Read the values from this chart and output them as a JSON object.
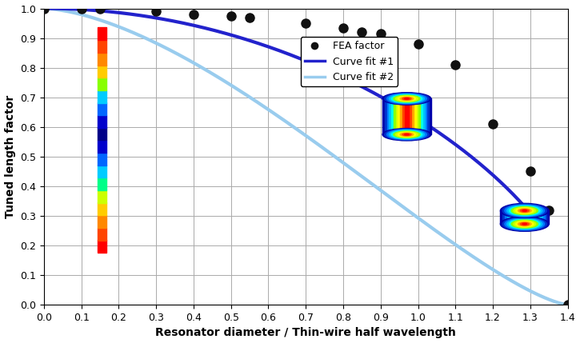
{
  "xlabel": "Resonator diameter / Thin-wire half wavelength",
  "ylabel": "Tuned length factor",
  "xlim": [
    0.0,
    1.4
  ],
  "ylim": [
    0.0,
    1.0
  ],
  "xticks": [
    0.0,
    0.1,
    0.2,
    0.3,
    0.4,
    0.5,
    0.6,
    0.7,
    0.8,
    0.9,
    1.0,
    1.1,
    1.2,
    1.3,
    1.4
  ],
  "yticks": [
    0.0,
    0.1,
    0.2,
    0.3,
    0.4,
    0.5,
    0.6,
    0.7,
    0.8,
    0.9,
    1.0
  ],
  "fea_x": [
    0.0,
    0.1,
    0.15,
    0.3,
    0.4,
    0.5,
    0.55,
    0.7,
    0.8,
    0.85,
    0.9,
    1.0,
    1.1,
    1.2,
    1.3,
    1.35,
    1.4
  ],
  "fea_y": [
    1.0,
    1.0,
    1.0,
    0.99,
    0.98,
    0.975,
    0.97,
    0.95,
    0.935,
    0.92,
    0.915,
    0.88,
    0.81,
    0.61,
    0.45,
    0.32,
    0.0
  ],
  "curve1_color": "#2222CC",
  "curve2_color": "#99CCEE",
  "fea_color": "#111111",
  "grid_color": "#AAAAAA",
  "background_color": "#FFFFFF",
  "legend_fea_label": "FEA factor",
  "legend_curve1_label": "Curve fit #1",
  "legend_curve2_label": "Curve fit #2",
  "figsize": [
    7.25,
    4.29
  ],
  "dpi": 100,
  "heat_colors": [
    "#000066",
    "#0000BB",
    "#0044FF",
    "#0099FF",
    "#00CCFF",
    "#00FFCC",
    "#44FF44",
    "#CCFF00",
    "#FFFF00",
    "#FFCC00",
    "#FF6600",
    "#FF0000"
  ]
}
